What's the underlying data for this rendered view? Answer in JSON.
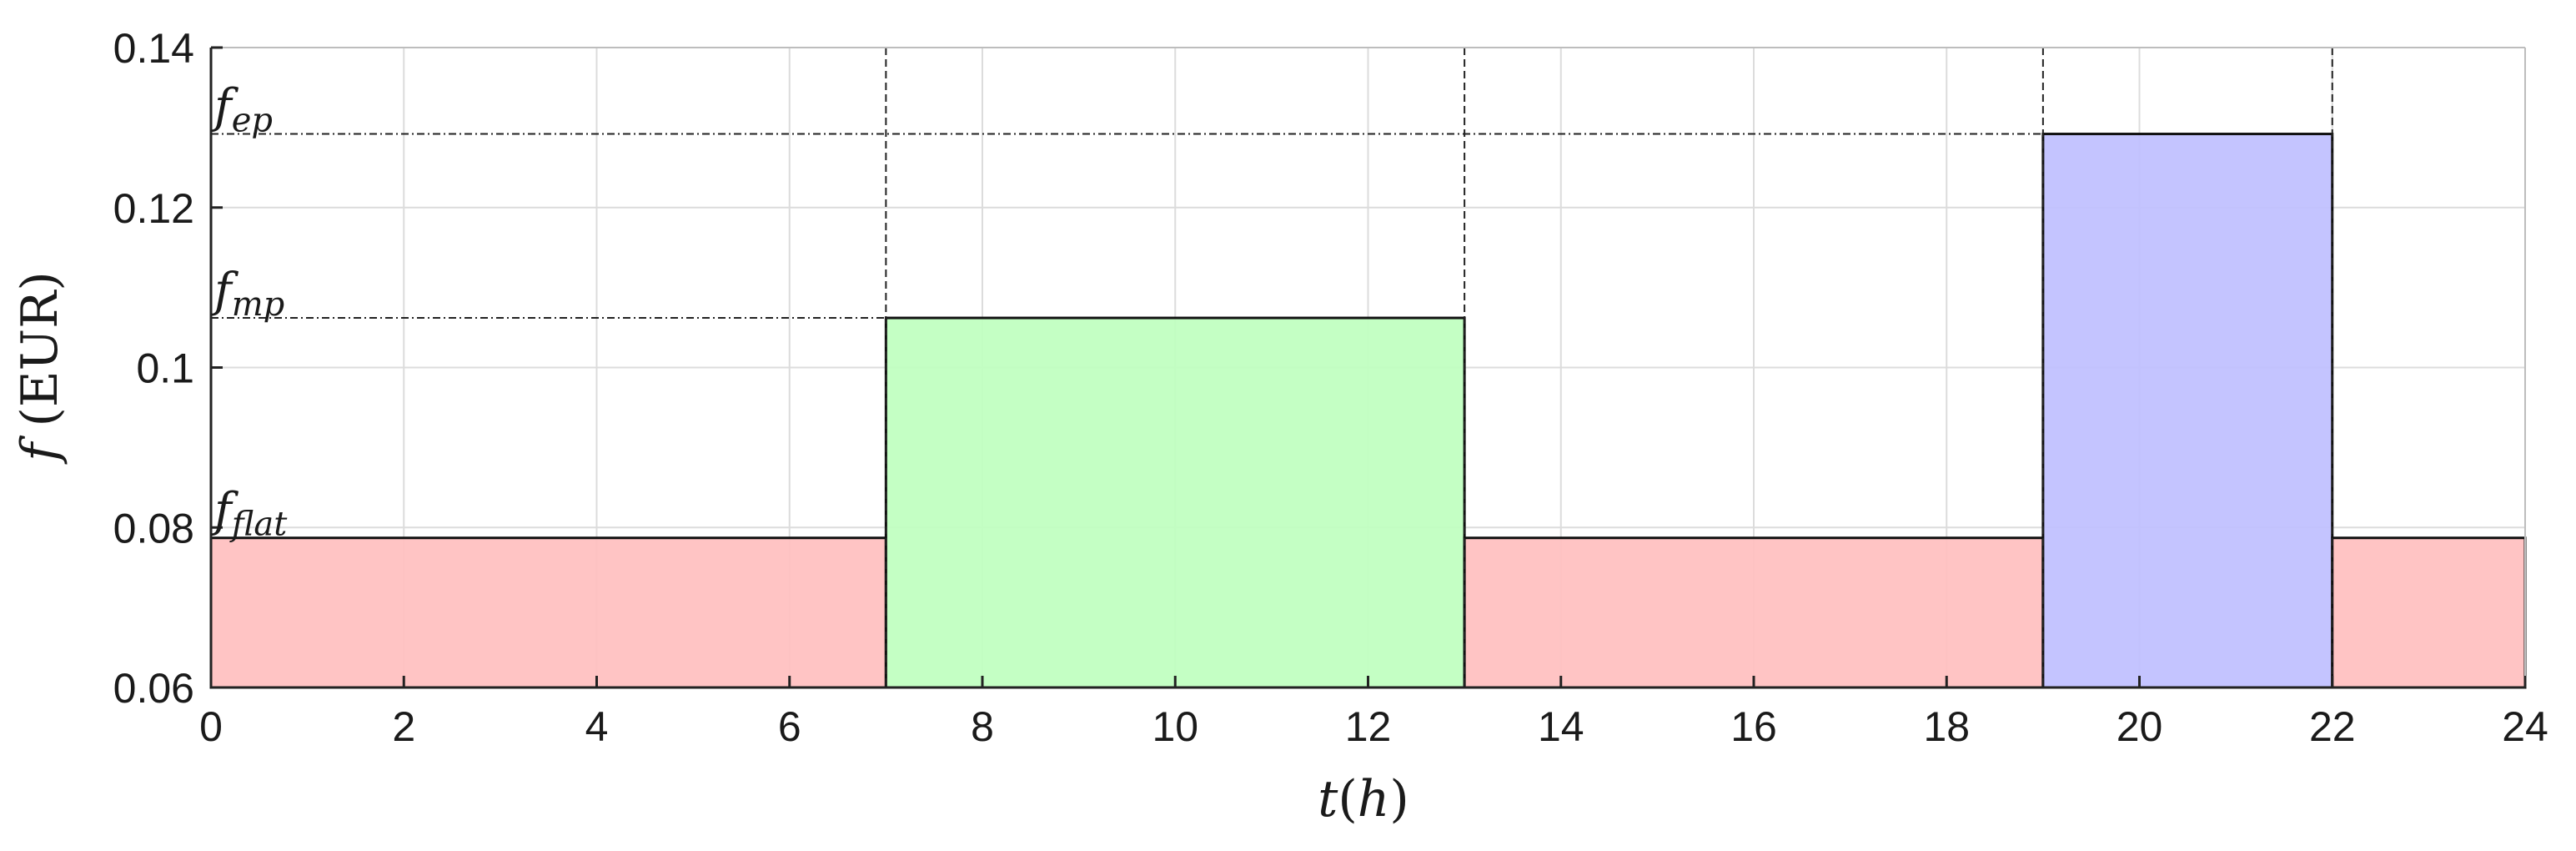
{
  "chart_data": {
    "type": "bar",
    "title": "",
    "xlabel": {
      "var": "t",
      "unit": "h",
      "open": "(",
      "close": ")"
    },
    "ylabel": {
      "var": "f",
      "unit": "(EUR)"
    },
    "xlim": [
      0,
      24
    ],
    "ylim": [
      0.06,
      0.14
    ],
    "xticks": [
      0,
      2,
      4,
      6,
      8,
      10,
      12,
      14,
      16,
      18,
      20,
      22,
      24
    ],
    "yticks": [
      0.06,
      0.08,
      0.1,
      0.12,
      0.14
    ],
    "xtick_labels": [
      "0",
      "2",
      "4",
      "6",
      "8",
      "10",
      "12",
      "14",
      "16",
      "18",
      "20",
      "22",
      "24"
    ],
    "ytick_labels": [
      "0.06",
      "0.08",
      "0.1",
      "0.12",
      "0.14"
    ],
    "grid": true,
    "segments": [
      {
        "start": 0,
        "end": 7,
        "value": 0.0787,
        "tariff": "flat",
        "color": "#ffbfbf"
      },
      {
        "start": 7,
        "end": 13,
        "value": 0.1062,
        "tariff": "mp",
        "color": "#bfffbf"
      },
      {
        "start": 13,
        "end": 19,
        "value": 0.0787,
        "tariff": "flat",
        "color": "#ffbfbf"
      },
      {
        "start": 19,
        "end": 22,
        "value": 0.1292,
        "tariff": "ep",
        "color": "#bfbfff"
      },
      {
        "start": 22,
        "end": 24,
        "value": 0.0787,
        "tariff": "flat",
        "color": "#ffbfbf"
      }
    ],
    "reference_lines": [
      {
        "tariff": "ep",
        "value": 0.1292,
        "x_end": 19
      },
      {
        "tariff": "mp",
        "value": 0.1062,
        "x_end": 7
      }
    ],
    "vertical_markers": [
      7,
      13,
      19,
      22
    ],
    "level_labels": [
      {
        "base": "f",
        "sub": "ep",
        "value": 0.1292
      },
      {
        "base": "f",
        "sub": "mp",
        "value": 0.1062
      },
      {
        "base": "f",
        "sub": "flat",
        "value": 0.0787
      }
    ]
  }
}
